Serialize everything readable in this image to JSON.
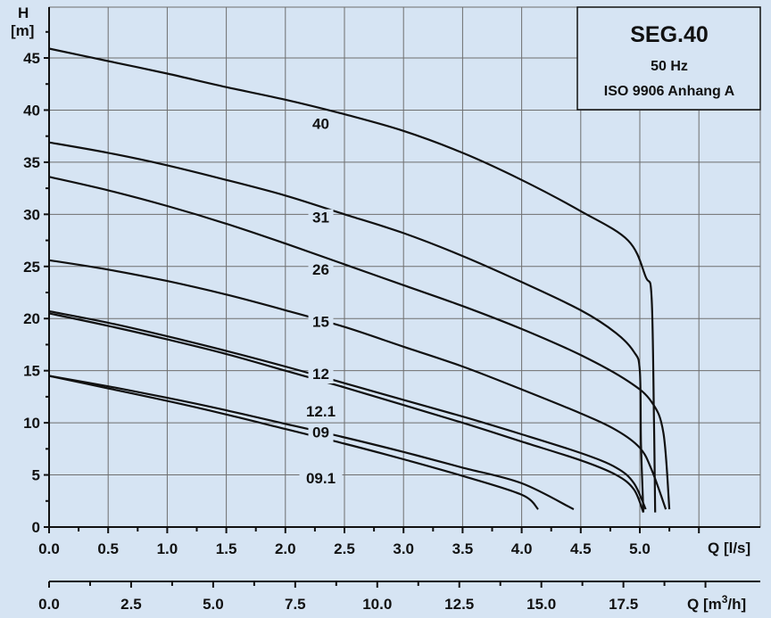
{
  "chart_data": {
    "type": "line",
    "title": "SEG.40",
    "subtitle_lines": [
      "50 Hz",
      "ISO 9906 Anhang A"
    ],
    "ylabel_lines": [
      "H",
      "[m]"
    ],
    "xlabel": "Q [l/s]",
    "xlabel2_prefix": "Q [m",
    "xlabel2_sup": "3",
    "xlabel2_suffix": "/h]",
    "xlim": [
      0,
      5.9
    ],
    "ylim": [
      0,
      50
    ],
    "grid": true,
    "yticks": [
      "0",
      "5",
      "10",
      "15",
      "20",
      "25",
      "30",
      "35",
      "40",
      "45"
    ],
    "xticks": [
      "0.0",
      "0.5",
      "1.0",
      "1.5",
      "2.0",
      "2.5",
      "3.0",
      "3.5",
      "4.0",
      "4.5",
      "5.0"
    ],
    "x2ticks": [
      "0.0",
      "2.5",
      "5.0",
      "7.5",
      "10.0",
      "12.5",
      "15.0",
      "17.5"
    ],
    "series": [
      {
        "name": "40",
        "x": [
          0,
          0.5,
          1.0,
          1.5,
          2.0,
          2.5,
          3.0,
          3.5,
          4.0,
          4.5,
          4.9,
          5.05,
          5.1,
          5.12,
          5.13
        ],
        "y": [
          45.9,
          44.7,
          43.5,
          42.2,
          41.0,
          39.6,
          38.0,
          35.9,
          33.3,
          30.3,
          27.5,
          24.0,
          22.0,
          10.0,
          1.4
        ]
      },
      {
        "name": "31",
        "x": [
          0,
          0.5,
          1.0,
          1.5,
          2.0,
          2.5,
          3.0,
          3.5,
          4.0,
          4.5,
          4.8,
          4.95,
          5.0,
          5.01,
          5.03
        ],
        "y": [
          36.9,
          35.9,
          34.7,
          33.3,
          31.8,
          30.0,
          28.2,
          26.0,
          23.5,
          20.8,
          18.6,
          16.8,
          15.0,
          8.0,
          1.4
        ]
      },
      {
        "name": "26",
        "x": [
          0,
          0.5,
          1.0,
          1.5,
          2.0,
          2.5,
          3.0,
          3.5,
          4.0,
          4.5,
          4.9,
          5.1,
          5.2,
          5.25
        ],
        "y": [
          33.6,
          32.3,
          30.8,
          29.1,
          27.2,
          25.2,
          23.2,
          21.2,
          19.0,
          16.5,
          14.0,
          12.0,
          9.0,
          1.7
        ]
      },
      {
        "name": "15",
        "x": [
          0,
          0.5,
          1.0,
          1.5,
          2.0,
          2.5,
          3.0,
          3.5,
          4.0,
          4.5,
          4.8,
          5.0,
          5.1,
          5.22
        ],
        "y": [
          25.6,
          24.7,
          23.6,
          22.3,
          20.8,
          19.2,
          17.3,
          15.4,
          13.2,
          10.9,
          9.3,
          7.6,
          5.5,
          1.7
        ]
      },
      {
        "name": "12",
        "x": [
          0,
          0.5,
          1.0,
          1.5,
          2.0,
          2.5,
          3.0,
          3.5,
          4.0,
          4.5,
          4.8,
          4.95,
          5.05
        ],
        "y": [
          20.7,
          19.6,
          18.3,
          16.9,
          15.4,
          13.8,
          12.2,
          10.6,
          8.9,
          7.1,
          5.7,
          4.2,
          1.7
        ]
      },
      {
        "name": "12.1",
        "x": [
          0,
          0.5,
          1.0,
          1.5,
          2.0,
          2.5,
          3.0,
          3.5,
          4.0,
          4.5,
          4.8,
          4.95,
          5.03
        ],
        "y": [
          20.5,
          19.3,
          18.0,
          16.6,
          15.0,
          13.4,
          11.7,
          10.0,
          8.2,
          6.4,
          5.0,
          3.6,
          1.4
        ]
      },
      {
        "name": "09",
        "x": [
          0,
          0.5,
          1.0,
          1.5,
          2.0,
          2.5,
          3.0,
          3.5,
          4.0,
          4.44
        ],
        "y": [
          14.5,
          13.5,
          12.4,
          11.2,
          9.9,
          8.6,
          7.2,
          5.7,
          4.2,
          1.7
        ]
      },
      {
        "name": "09.1",
        "x": [
          0,
          0.5,
          1.0,
          1.5,
          2.0,
          2.5,
          3.0,
          3.5,
          4.0,
          4.14
        ],
        "y": [
          14.5,
          13.3,
          12.1,
          10.8,
          9.4,
          8.0,
          6.5,
          4.9,
          3.1,
          1.7
        ]
      }
    ],
    "curve_labels": [
      {
        "text": "40",
        "x": 2.3,
        "y": 38.2
      },
      {
        "text": "31",
        "x": 2.3,
        "y": 29.2
      },
      {
        "text": "26",
        "x": 2.3,
        "y": 24.2
      },
      {
        "text": "15",
        "x": 2.3,
        "y": 19.2
      },
      {
        "text": "12",
        "x": 2.3,
        "y": 14.2
      },
      {
        "text": "12.1",
        "x": 2.3,
        "y": 10.6
      },
      {
        "text": "09",
        "x": 2.3,
        "y": 8.6
      },
      {
        "text": "09.1",
        "x": 2.3,
        "y": 4.2
      }
    ],
    "colors": {
      "background": "#d6e4f3",
      "line": "#111111",
      "grid": "#6e6e6e",
      "box": "#d6e4f3"
    }
  }
}
